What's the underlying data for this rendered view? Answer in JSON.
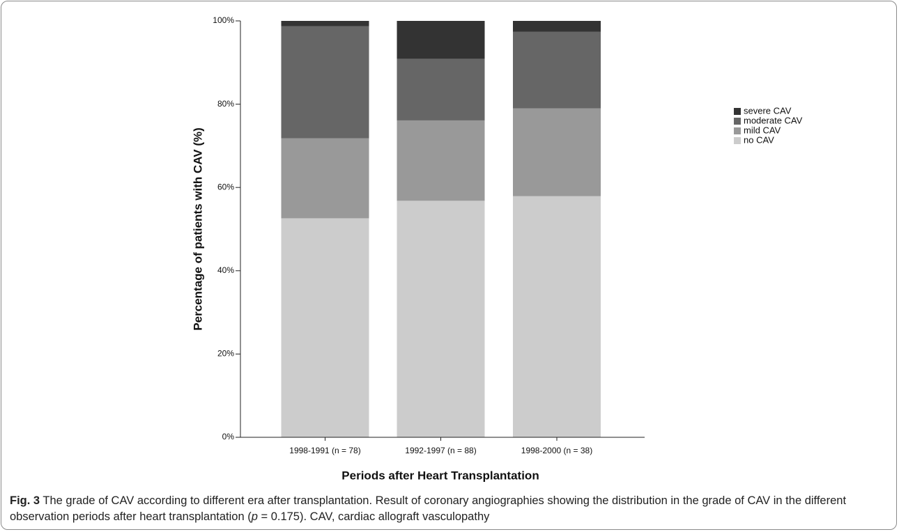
{
  "chart_data": {
    "type": "stacked_bar",
    "categories": [
      "1998-1991 (n = 78)",
      "1992-1997 (n = 88)",
      "1998-2000 (n = 38)"
    ],
    "series": [
      {
        "name": "no CAV",
        "color": "#cccccc",
        "values": [
          52.6,
          56.8,
          57.9
        ]
      },
      {
        "name": "mild CAV",
        "color": "#999999",
        "values": [
          19.2,
          19.3,
          21.1
        ]
      },
      {
        "name": "moderate CAV",
        "color": "#666666",
        "values": [
          26.9,
          14.8,
          18.4
        ]
      },
      {
        "name": "severe CAV",
        "color": "#333333",
        "values": [
          1.3,
          9.1,
          2.6
        ]
      }
    ],
    "ylim": [
      0,
      100
    ],
    "yticks": [
      {
        "value": 0,
        "label": "0%"
      },
      {
        "value": 20,
        "label": "20%"
      },
      {
        "value": 40,
        "label": "40%"
      },
      {
        "value": 60,
        "label": "60%"
      },
      {
        "value": 80,
        "label": "80%"
      },
      {
        "value": 100,
        "label": "100%"
      }
    ],
    "y_label": "Percentage of patients with CAV (%)",
    "x_label": "Periods after Heart Transplantation",
    "legend": "upper right",
    "caption": {
      "label": "Fig. 3",
      "text_1": "The grade of CAV according to different era after transplantation. Result of coronary angiographies showing the distribution in the grade of CAV in the different observation periods after heart transplantation (",
      "italic": "p",
      "text_2": " = 0.175). CAV, cardiac allograft vasculopathy"
    }
  }
}
